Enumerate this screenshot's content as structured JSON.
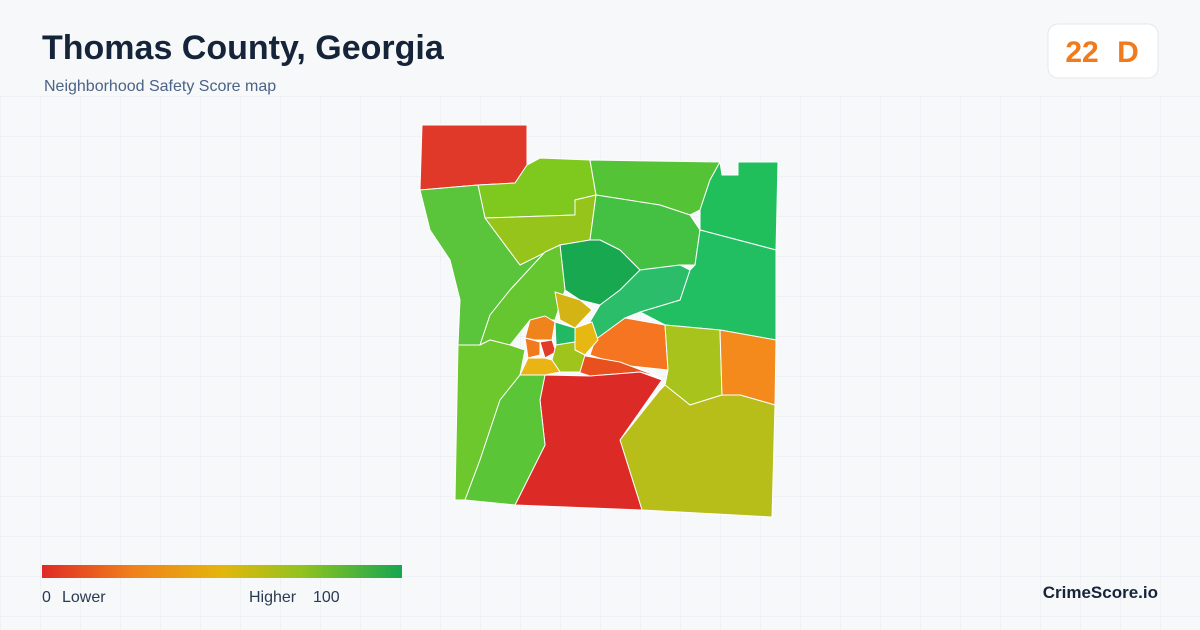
{
  "header": {
    "title": "Thomas County, Georgia",
    "subtitle": "Neighborhood Safety Score map"
  },
  "score": {
    "value": 22,
    "grade": "D"
  },
  "legend": {
    "min": 0,
    "min_label": "Lower",
    "max_label": "Higher",
    "max": 100
  },
  "brand": "CrimeScore.io"
}
